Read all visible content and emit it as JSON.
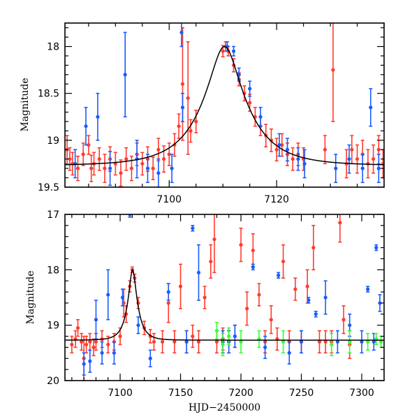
{
  "chart_data": [
    {
      "type": "scatter",
      "panel": "top",
      "title": "",
      "xlabel": "",
      "ylabel": "Magnitude",
      "xlim": [
        7080.6,
        7140
      ],
      "ylim": [
        19.5,
        17.75
      ],
      "y_inverted": true,
      "grid": false,
      "legend": "none",
      "xticks": [
        7100,
        7120
      ],
      "xtick_labels": [
        "7100",
        "7120"
      ],
      "x_minor_step": 5,
      "yticks": [
        18,
        18.5,
        19,
        19.5
      ],
      "ytick_labels": [
        "18",
        "18.5",
        "19",
        "19.5"
      ],
      "y_minor_step": 0.1,
      "model": {
        "name": "microlensing-fit",
        "t0": 7110.3,
        "baseline_mag": 19.27,
        "peak_mag": 18.0,
        "tE": 8.5,
        "u0": 0.3,
        "color": "#000000"
      },
      "series": [
        {
          "name": "red",
          "color": "#ff3b2f",
          "points": [
            [
              7081,
              19.1,
              0.15
            ],
            [
              7081.5,
              19.2,
              0.12
            ],
            [
              7082,
              19.25,
              0.12
            ],
            [
              7083,
              19.3,
              0.13
            ],
            [
              7084,
              19.15,
              0.12
            ],
            [
              7085,
              19.05,
              0.1
            ],
            [
              7085.5,
              19.3,
              0.14
            ],
            [
              7086,
              19.25,
              0.12
            ],
            [
              7087,
              19.2,
              0.12
            ],
            [
              7088,
              19.3,
              0.15
            ],
            [
              7089,
              19.2,
              0.13
            ],
            [
              7090,
              19.25,
              0.12
            ],
            [
              7091,
              19.35,
              0.14
            ],
            [
              7092,
              19.2,
              0.12
            ],
            [
              7093,
              19.3,
              0.13
            ],
            [
              7094,
              19.15,
              0.12
            ],
            [
              7095,
              19.25,
              0.12
            ],
            [
              7096,
              19.2,
              0.13
            ],
            [
              7097,
              19.3,
              0.12
            ],
            [
              7098,
              19.1,
              0.12
            ],
            [
              7099,
              19.2,
              0.14
            ],
            [
              7100,
              19.15,
              0.12
            ],
            [
              7101,
              19.05,
              0.12
            ],
            [
              7101.8,
              18.85,
              0.13
            ],
            [
              7102.5,
              18.4,
              0.6
            ],
            [
              7103.5,
              18.55,
              0.6
            ],
            [
              7104,
              18.9,
              0.12
            ],
            [
              7105,
              18.8,
              0.12
            ],
            [
              7110,
              18.05,
              0.06
            ],
            [
              7110.5,
              18.0,
              0.05
            ],
            [
              7111,
              18.05,
              0.05
            ],
            [
              7112,
              18.2,
              0.07
            ],
            [
              7113,
              18.35,
              0.07
            ],
            [
              7114,
              18.5,
              0.08
            ],
            [
              7115,
              18.6,
              0.09
            ],
            [
              7116,
              18.75,
              0.1
            ],
            [
              7117,
              18.85,
              0.1
            ],
            [
              7118,
              18.95,
              0.12
            ],
            [
              7119,
              19.0,
              0.12
            ],
            [
              7120,
              19.1,
              0.12
            ],
            [
              7121,
              19.05,
              0.12
            ],
            [
              7122,
              19.15,
              0.12
            ],
            [
              7123,
              19.2,
              0.12
            ],
            [
              7124,
              19.15,
              0.12
            ],
            [
              7125,
              19.2,
              0.12
            ],
            [
              7129,
              19.1,
              0.15
            ],
            [
              7130.5,
              18.25,
              0.55
            ],
            [
              7133,
              19.25,
              0.15
            ],
            [
              7134,
              19.1,
              0.15
            ],
            [
              7135,
              19.2,
              0.15
            ],
            [
              7136,
              19.15,
              0.15
            ],
            [
              7137,
              19.25,
              0.15
            ],
            [
              7138,
              19.2,
              0.15
            ],
            [
              7139,
              19.1,
              0.15
            ],
            [
              7139.8,
              19.25,
              0.15
            ]
          ]
        },
        {
          "name": "blue",
          "color": "#1a5cff",
          "points": [
            [
              7082.5,
              19.25,
              0.15
            ],
            [
              7084.5,
              18.85,
              0.2
            ],
            [
              7086.7,
              18.75,
              0.25
            ],
            [
              7089,
              19.3,
              0.18
            ],
            [
              7091.8,
              18.3,
              0.45
            ],
            [
              7094,
              19.2,
              0.2
            ],
            [
              7096,
              19.3,
              0.15
            ],
            [
              7098,
              19.35,
              0.15
            ],
            [
              7100.5,
              19.3,
              0.15
            ],
            [
              7102.3,
              17.85,
              0.15
            ],
            [
              7102.5,
              18.65,
              0.15
            ],
            [
              7110.8,
              18.0,
              0.05
            ],
            [
              7112,
              18.05,
              0.05
            ],
            [
              7113,
              18.3,
              0.07
            ],
            [
              7115,
              18.45,
              0.08
            ],
            [
              7117,
              18.75,
              0.1
            ],
            [
              7120.5,
              19.05,
              0.12
            ],
            [
              7122,
              19.1,
              0.12
            ],
            [
              7124,
              19.2,
              0.12
            ],
            [
              7125.2,
              19.25,
              0.15
            ],
            [
              7131,
              19.3,
              0.15
            ],
            [
              7133.5,
              19.2,
              0.15
            ],
            [
              7136,
              19.3,
              0.15
            ],
            [
              7137.5,
              18.65,
              0.2
            ],
            [
              7139,
              19.3,
              0.15
            ]
          ]
        }
      ]
    },
    {
      "type": "scatter",
      "panel": "bottom",
      "title": "",
      "xlabel": "HJD−2450000",
      "ylabel": "Magnitude",
      "xlim": [
        7054.3,
        7318.5
      ],
      "ylim": [
        20,
        17
      ],
      "y_inverted": true,
      "grid": false,
      "legend": "none",
      "xticks": [
        7100,
        7150,
        7200,
        7250,
        7300
      ],
      "xtick_labels": [
        "7100",
        "7150",
        "7200",
        "7250",
        "7300"
      ],
      "x_minor_step": 10,
      "yticks": [
        17,
        18,
        19,
        20
      ],
      "ytick_labels": [
        "17",
        "18",
        "19",
        "20"
      ],
      "y_minor_step": 0.2,
      "model": {
        "name": "microlensing-fit",
        "t0": 7110.3,
        "baseline_mag": 19.27,
        "peak_mag": 18.0,
        "tE": 8.5,
        "u0": 0.3,
        "color": "#000000"
      },
      "series": [
        {
          "name": "red",
          "color": "#ff3b2f",
          "points": [
            [
              7060,
              19.35,
              0.15
            ],
            [
              7063,
              19.25,
              0.15
            ],
            [
              7065,
              19.05,
              0.15
            ],
            [
              7068,
              19.3,
              0.15
            ],
            [
              7070,
              19.6,
              0.4
            ],
            [
              7072,
              19.35,
              0.15
            ],
            [
              7075,
              19.3,
              0.15
            ],
            [
              7078,
              19.4,
              0.15
            ],
            [
              7080,
              19.3,
              0.15
            ],
            [
              7085,
              19.25,
              0.15
            ],
            [
              7090,
              19.35,
              0.15
            ],
            [
              7095,
              19.3,
              0.15
            ],
            [
              7100,
              19.2,
              0.15
            ],
            [
              7103,
              18.6,
              0.25
            ],
            [
              7105,
              18.8,
              0.15
            ],
            [
              7108,
              18.3,
              0.1
            ],
            [
              7110,
              18.0,
              0.05
            ],
            [
              7112,
              18.15,
              0.07
            ],
            [
              7115,
              18.6,
              0.1
            ],
            [
              7120,
              19.05,
              0.12
            ],
            [
              7125,
              19.2,
              0.12
            ],
            [
              7128,
              19.3,
              0.15
            ],
            [
              7135,
              19.3,
              0.2
            ],
            [
              7140,
              18.6,
              0.35
            ],
            [
              7145,
              19.3,
              0.2
            ],
            [
              7150,
              18.3,
              0.4
            ],
            [
              7155,
              19.3,
              0.2
            ],
            [
              7160,
              19.2,
              0.2
            ],
            [
              7165,
              19.3,
              0.2
            ],
            [
              7170,
              18.5,
              0.2
            ],
            [
              7175,
              17.85,
              0.3
            ],
            [
              7178,
              17.45,
              0.6
            ],
            [
              7180,
              19.3,
              0.2
            ],
            [
              7185,
              19.25,
              0.2
            ],
            [
              7190,
              19.3,
              0.2
            ],
            [
              7195,
              19.2,
              0.2
            ],
            [
              7200,
              17.55,
              0.3
            ],
            [
              7205,
              18.7,
              0.3
            ],
            [
              7210,
              17.65,
              0.3
            ],
            [
              7215,
              18.45,
              0.2
            ],
            [
              7220,
              19.3,
              0.2
            ],
            [
              7225,
              18.9,
              0.25
            ],
            [
              7230,
              19.25,
              0.2
            ],
            [
              7235,
              17.85,
              0.3
            ],
            [
              7240,
              19.3,
              0.2
            ],
            [
              7245,
              18.35,
              0.2
            ],
            [
              7250,
              19.3,
              0.2
            ],
            [
              7255,
              18.3,
              0.3
            ],
            [
              7260,
              17.6,
              0.4
            ],
            [
              7265,
              19.3,
              0.2
            ],
            [
              7270,
              19.3,
              0.2
            ],
            [
              7275,
              19.3,
              0.2
            ],
            [
              7282,
              17.15,
              0.35
            ],
            [
              7285,
              18.9,
              0.25
            ],
            [
              7290,
              19.35,
              0.25
            ]
          ]
        },
        {
          "name": "blue",
          "color": "#1a5cff",
          "points": [
            [
              7070,
              19.7,
              0.2
            ],
            [
              7075,
              19.65,
              0.2
            ],
            [
              7080,
              18.9,
              0.35
            ],
            [
              7085,
              19.5,
              0.2
            ],
            [
              7090,
              18.45,
              0.45
            ],
            [
              7095,
              19.5,
              0.2
            ],
            [
              7102,
              18.5,
              0.15
            ],
            [
              7108,
              17.0,
              0.05
            ],
            [
              7115,
              19.0,
              0.15
            ],
            [
              7125,
              19.6,
              0.15
            ],
            [
              7140,
              18.4,
              0.15
            ],
            [
              7155,
              19.3,
              0.2
            ],
            [
              7160,
              17.25,
              0.05
            ],
            [
              7165,
              18.05,
              0.5
            ],
            [
              7185,
              19.3,
              0.2
            ],
            [
              7190,
              19.3,
              0.2
            ],
            [
              7195,
              19.2,
              0.2
            ],
            [
              7210,
              17.95,
              0.05
            ],
            [
              7220,
              19.4,
              0.2
            ],
            [
              7231,
              18.1,
              0.05
            ],
            [
              7240,
              19.5,
              0.2
            ],
            [
              7250,
              19.3,
              0.2
            ],
            [
              7256,
              18.55,
              0.05
            ],
            [
              7262,
              18.8,
              0.05
            ],
            [
              7270,
              18.5,
              0.3
            ],
            [
              7280,
              19.3,
              0.2
            ],
            [
              7290,
              19.0,
              0.2
            ],
            [
              7300,
              19.3,
              0.2
            ],
            [
              7305,
              18.35,
              0.05
            ],
            [
              7310,
              19.3,
              0.15
            ],
            [
              7312,
              17.6,
              0.05
            ],
            [
              7315,
              18.6,
              0.15
            ]
          ]
        },
        {
          "name": "green",
          "color": "#33ff33",
          "points": [
            [
              7180,
              19.1,
              0.15
            ],
            [
              7185,
              19.35,
              0.2
            ],
            [
              7190,
              19.2,
              0.15
            ],
            [
              7200,
              19.3,
              0.2
            ],
            [
              7215,
              19.25,
              0.15
            ],
            [
              7235,
              19.3,
              0.2
            ],
            [
              7275,
              19.35,
              0.2
            ],
            [
              7290,
              19.3,
              0.2
            ],
            [
              7305,
              19.3,
              0.15
            ],
            [
              7312,
              19.25,
              0.1
            ],
            [
              7316,
              19.3,
              0.1
            ]
          ]
        }
      ]
    }
  ]
}
